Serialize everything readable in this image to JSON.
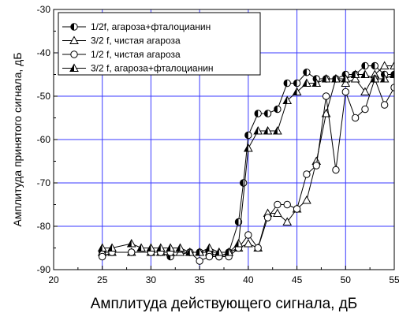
{
  "chart_data": {
    "type": "line",
    "xlabel": "Амплитуда действующего сигнала, дБ",
    "ylabel": "Амплитуда принятого сигнала, дБ",
    "xlim": [
      20,
      55
    ],
    "ylim": [
      -90,
      -30
    ],
    "xticks": [
      20,
      25,
      30,
      35,
      40,
      45,
      50,
      55
    ],
    "yticks": [
      -90,
      -80,
      -70,
      -60,
      -50,
      -40,
      -30
    ],
    "grid": true,
    "grid_color": "#3a3aff",
    "legend_position": "top-left",
    "series": [
      {
        "name": "1/2f, агароза+фталоцианин",
        "marker": "half-filled-circle",
        "x": [
          25,
          26,
          28,
          30,
          31,
          32,
          34,
          35,
          36,
          37,
          38,
          39,
          39.5,
          40,
          41,
          42,
          43,
          44,
          45,
          46,
          47,
          48,
          49,
          50,
          51,
          52,
          53,
          54,
          55
        ],
        "y": [
          -86,
          -86,
          -86,
          -86,
          -86,
          -87,
          -86,
          -86,
          -86,
          -87,
          -86,
          -79,
          -70,
          -59,
          -54,
          -54,
          -53,
          -47,
          -47,
          -44.5,
          -46,
          -46,
          -46,
          -45,
          -45,
          -43,
          -43,
          -45,
          -45
        ]
      },
      {
        "name": "3/2 f, чистая агароза",
        "marker": "open-triangle",
        "x": [
          25,
          26,
          28,
          30,
          31,
          32,
          33,
          34,
          35,
          36,
          37,
          38,
          39,
          40,
          41,
          42,
          43,
          44,
          45,
          46,
          47,
          48,
          49,
          50,
          51,
          52,
          53,
          54,
          55
        ],
        "y": [
          -86,
          -86,
          -86,
          -86,
          -86,
          -86,
          -86,
          -86,
          -86,
          -86,
          -86,
          -86,
          -85,
          -84,
          -85,
          -77,
          -77,
          -79,
          -76,
          -74,
          -65,
          -54,
          -46,
          -47,
          -46,
          -49,
          -45,
          -43,
          -43
        ]
      },
      {
        "name": "1/2 f, чистая агароза",
        "marker": "open-circle",
        "x": [
          25,
          26,
          28,
          30,
          31,
          32,
          34,
          35,
          36,
          37,
          38,
          39,
          40,
          41,
          42,
          43,
          44,
          45,
          46,
          47,
          48,
          49,
          50,
          51,
          52,
          53,
          54,
          55
        ],
        "y": [
          -87,
          -86,
          -86,
          -86,
          -86,
          -86,
          -86,
          -88,
          -87,
          -87,
          -87,
          -85,
          -82,
          -85,
          -78,
          -75,
          -75,
          -76,
          -68,
          -66,
          -50,
          -67,
          -49,
          -55,
          -53,
          -46,
          -52,
          -48
        ]
      },
      {
        "name": "3/2 f, агароза+фталоцианин",
        "marker": "half-filled-triangle",
        "x": [
          25,
          26,
          28,
          29,
          30,
          31,
          32,
          33,
          34,
          35,
          36,
          37,
          38,
          39,
          40,
          41,
          42,
          43,
          44,
          45,
          46,
          47,
          48,
          49,
          50,
          51,
          52,
          53,
          54,
          55
        ],
        "y": [
          -85,
          -85,
          -84,
          -85,
          -85,
          -85,
          -85,
          -85,
          -86,
          -86,
          -85,
          -86,
          -86,
          -84,
          -62,
          -58,
          -58,
          -58,
          -51,
          -49,
          -47,
          -47,
          -46,
          -46,
          -46,
          -45,
          -45,
          -46,
          -46,
          -45
        ]
      }
    ]
  }
}
